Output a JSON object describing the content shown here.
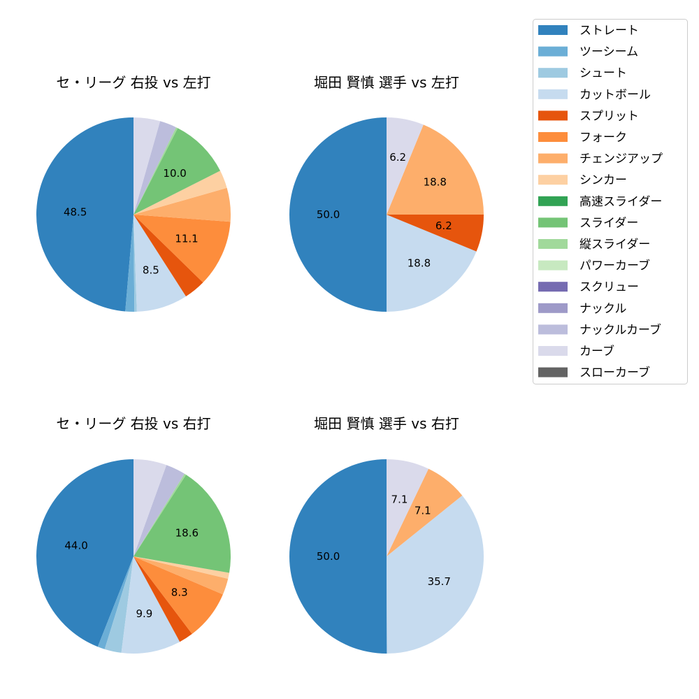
{
  "chart_data": [
    {
      "type": "pie",
      "title": "セ・リーグ 右投 vs 左打",
      "categories": [
        "ストレート",
        "ツーシーム",
        "シュート",
        "カットボール",
        "スプリット",
        "フォーク",
        "チェンジアップ",
        "シンカー",
        "スライダー",
        "縦スライダー",
        "ナックルカーブ",
        "カーブ"
      ],
      "values": [
        48.5,
        1.5,
        0.4,
        8.5,
        3.6,
        11.1,
        5.6,
        3.0,
        10.0,
        0.3,
        2.8,
        4.4
      ]
    },
    {
      "type": "pie",
      "title": "堀田 賢慎 選手 vs 左打",
      "categories": [
        "ストレート",
        "カットボール",
        "スプリット",
        "チェンジアップ",
        "カーブ"
      ],
      "values": [
        50.0,
        18.8,
        6.2,
        18.8,
        6.2
      ]
    },
    {
      "type": "pie",
      "title": "セ・リーグ 右投 vs 右打",
      "categories": [
        "ストレート",
        "ツーシーム",
        "シュート",
        "カットボール",
        "スプリット",
        "フォーク",
        "チェンジアップ",
        "シンカー",
        "スライダー",
        "縦スライダー",
        "ナックルカーブ",
        "カーブ"
      ],
      "values": [
        44.0,
        1.2,
        2.8,
        9.9,
        2.4,
        8.3,
        2.7,
        1.0,
        18.6,
        0.3,
        3.3,
        5.5
      ]
    },
    {
      "type": "pie",
      "title": "堀田 賢慎 選手 vs 右打",
      "categories": [
        "ストレート",
        "カットボール",
        "チェンジアップ",
        "カーブ"
      ],
      "values": [
        50.0,
        35.7,
        7.1,
        7.1
      ]
    }
  ],
  "legend": {
    "placement": "right",
    "items": [
      {
        "label": "ストレート",
        "color": "#3182bd"
      },
      {
        "label": "ツーシーム",
        "color": "#6baed6"
      },
      {
        "label": "シュート",
        "color": "#9ecae1"
      },
      {
        "label": "カットボール",
        "color": "#c6dbef"
      },
      {
        "label": "スプリット",
        "color": "#e6550d"
      },
      {
        "label": "フォーク",
        "color": "#fd8d3c"
      },
      {
        "label": "チェンジアップ",
        "color": "#fdae6b"
      },
      {
        "label": "シンカー",
        "color": "#fdd0a2"
      },
      {
        "label": "高速スライダー",
        "color": "#31a354"
      },
      {
        "label": "スライダー",
        "color": "#74c476"
      },
      {
        "label": "縦スライダー",
        "color": "#a1d99b"
      },
      {
        "label": "パワーカーブ",
        "color": "#c7e9c0"
      },
      {
        "label": "スクリュー",
        "color": "#756bb1"
      },
      {
        "label": "ナックル",
        "color": "#9e9ac8"
      },
      {
        "label": "ナックルカーブ",
        "color": "#bcbddc"
      },
      {
        "label": "カーブ",
        "color": "#dadaeb"
      },
      {
        "label": "スローカーブ",
        "color": "#636363"
      }
    ]
  }
}
